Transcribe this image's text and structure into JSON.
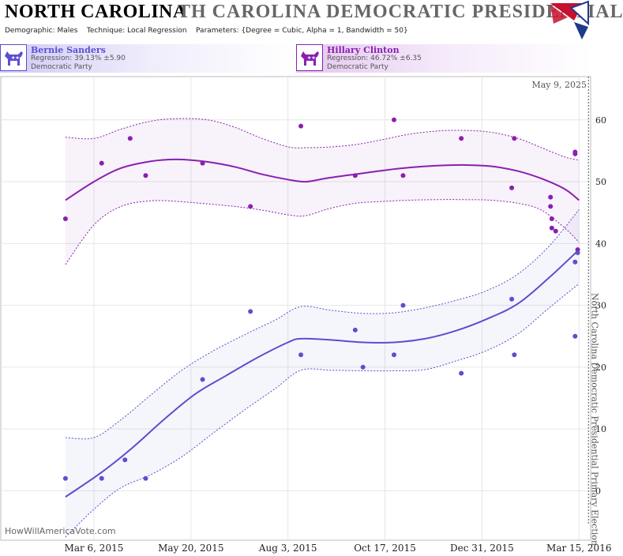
{
  "header": {
    "state": "NORTH CAROLINA",
    "race_title": "TH CAROLINA DEMOCRATIC PRESIDENTIAL I",
    "demographic_label": "Demographic:",
    "demographic_value": "Males",
    "technique_label": "Technique:",
    "technique_value": "Local Regression",
    "parameters_label": "Parameters:",
    "parameters_value": "{Degree = Cubic, Alpha = 1, Bandwidth = 50}"
  },
  "candidates": [
    {
      "name": "Bernie Sanders",
      "regression": "Regression: 39.13% ±5.90",
      "party": "Democratic Party",
      "color": "#5a4fcf"
    },
    {
      "name": "Hillary Clinton",
      "regression": "Regression: 46.72% ±6.35",
      "party": "Democratic Party",
      "color": "#8a1fb0"
    }
  ],
  "chart_data": {
    "type": "scatter",
    "current_date_label": "May 9, 2025",
    "election_label": "North Carolina Democratic Presidential Primary Election",
    "watermark": "HowWillAmericaVote.com",
    "x_tick_labels": [
      "Mar 6, 2015",
      "May 20, 2015",
      "Aug 3, 2015",
      "Oct 17, 2015",
      "Dec 31, 2015",
      "Mar 15, 2016"
    ],
    "x_tick_dates": [
      "2015-03-06",
      "2015-05-20",
      "2015-08-03",
      "2015-10-17",
      "2015-12-31",
      "2016-03-15"
    ],
    "xlim": [
      "2014-12-24",
      "2016-03-24"
    ],
    "ylim": [
      -8,
      67
    ],
    "y_ticks": [
      0,
      10,
      20,
      30,
      40,
      50,
      60
    ],
    "grid": true,
    "series": [
      {
        "name": "Hillary Clinton",
        "color": "#8a1fb0",
        "points": [
          {
            "x": "2015-02-12",
            "y": 44
          },
          {
            "x": "2015-03-12",
            "y": 53
          },
          {
            "x": "2015-04-03",
            "y": 57
          },
          {
            "x": "2015-04-15",
            "y": 51
          },
          {
            "x": "2015-05-29",
            "y": 53
          },
          {
            "x": "2015-07-05",
            "y": 46
          },
          {
            "x": "2015-08-13",
            "y": 59
          },
          {
            "x": "2015-09-24",
            "y": 51
          },
          {
            "x": "2015-10-24",
            "y": 60
          },
          {
            "x": "2015-10-31",
            "y": 51
          },
          {
            "x": "2015-12-15",
            "y": 57
          },
          {
            "x": "2016-01-23",
            "y": 49
          },
          {
            "x": "2016-01-25",
            "y": 57
          },
          {
            "x": "2016-02-22",
            "y": 47.5
          },
          {
            "x": "2016-02-22",
            "y": 46
          },
          {
            "x": "2016-02-23",
            "y": 44
          },
          {
            "x": "2016-02-23",
            "y": 42.5
          },
          {
            "x": "2016-02-26",
            "y": 42
          },
          {
            "x": "2016-03-12",
            "y": 54.5
          },
          {
            "x": "2016-03-12",
            "y": 54.8
          },
          {
            "x": "2016-03-14",
            "y": 39
          }
        ],
        "trend": [
          {
            "x": "2015-02-12",
            "y": 47
          },
          {
            "x": "2015-03-06",
            "y": 50
          },
          {
            "x": "2015-03-27",
            "y": 52.2
          },
          {
            "x": "2015-04-19",
            "y": 53.3
          },
          {
            "x": "2015-05-10",
            "y": 53.6
          },
          {
            "x": "2015-06-02",
            "y": 53.2
          },
          {
            "x": "2015-06-23",
            "y": 52.4
          },
          {
            "x": "2015-07-14",
            "y": 51.2
          },
          {
            "x": "2015-08-04",
            "y": 50.3
          },
          {
            "x": "2015-08-17",
            "y": 50
          },
          {
            "x": "2015-09-03",
            "y": 50.6
          },
          {
            "x": "2015-09-24",
            "y": 51.2
          },
          {
            "x": "2015-10-15",
            "y": 51.8
          },
          {
            "x": "2015-11-05",
            "y": 52.3
          },
          {
            "x": "2015-11-26",
            "y": 52.6
          },
          {
            "x": "2015-12-17",
            "y": 52.7
          },
          {
            "x": "2016-01-07",
            "y": 52.5
          },
          {
            "x": "2016-01-28",
            "y": 51.7
          },
          {
            "x": "2016-02-15",
            "y": 50.5
          },
          {
            "x": "2016-03-04",
            "y": 48.8
          },
          {
            "x": "2016-03-15",
            "y": 47
          }
        ],
        "band_upper": [
          {
            "x": "2015-02-12",
            "y": 57.2
          },
          {
            "x": "2015-03-06",
            "y": 57
          },
          {
            "x": "2015-03-27",
            "y": 58.5
          },
          {
            "x": "2015-04-19",
            "y": 59.8
          },
          {
            "x": "2015-05-10",
            "y": 60.2
          },
          {
            "x": "2015-06-02",
            "y": 60
          },
          {
            "x": "2015-06-23",
            "y": 58.8
          },
          {
            "x": "2015-07-14",
            "y": 57
          },
          {
            "x": "2015-08-04",
            "y": 55.6
          },
          {
            "x": "2015-08-17",
            "y": 55.5
          },
          {
            "x": "2015-09-03",
            "y": 55.6
          },
          {
            "x": "2015-09-24",
            "y": 56
          },
          {
            "x": "2015-10-15",
            "y": 56.8
          },
          {
            "x": "2015-11-05",
            "y": 57.7
          },
          {
            "x": "2015-11-26",
            "y": 58.2
          },
          {
            "x": "2015-12-17",
            "y": 58.3
          },
          {
            "x": "2016-01-07",
            "y": 58
          },
          {
            "x": "2016-01-28",
            "y": 57
          },
          {
            "x": "2016-02-15",
            "y": 55.5
          },
          {
            "x": "2016-03-04",
            "y": 54
          },
          {
            "x": "2016-03-15",
            "y": 53.5
          }
        ],
        "band_lower": [
          {
            "x": "2015-02-12",
            "y": 36.6
          },
          {
            "x": "2015-03-06",
            "y": 43
          },
          {
            "x": "2015-03-27",
            "y": 46
          },
          {
            "x": "2015-04-19",
            "y": 46.9
          },
          {
            "x": "2015-05-10",
            "y": 46.8
          },
          {
            "x": "2015-06-02",
            "y": 46.4
          },
          {
            "x": "2015-06-23",
            "y": 46
          },
          {
            "x": "2015-07-14",
            "y": 45.4
          },
          {
            "x": "2015-08-04",
            "y": 44.6
          },
          {
            "x": "2015-08-17",
            "y": 44.5
          },
          {
            "x": "2015-09-03",
            "y": 45.6
          },
          {
            "x": "2015-09-24",
            "y": 46.5
          },
          {
            "x": "2015-10-15",
            "y": 46.8
          },
          {
            "x": "2015-11-05",
            "y": 47
          },
          {
            "x": "2015-11-26",
            "y": 47.1
          },
          {
            "x": "2015-12-17",
            "y": 47.1
          },
          {
            "x": "2016-01-07",
            "y": 47
          },
          {
            "x": "2016-01-28",
            "y": 46.5
          },
          {
            "x": "2016-02-15",
            "y": 45.4
          },
          {
            "x": "2016-03-04",
            "y": 42.5
          },
          {
            "x": "2016-03-15",
            "y": 40.2
          }
        ]
      },
      {
        "name": "Bernie Sanders",
        "color": "#5a4fcf",
        "points": [
          {
            "x": "2015-02-12",
            "y": 2
          },
          {
            "x": "2015-03-12",
            "y": 2
          },
          {
            "x": "2015-03-30",
            "y": 5
          },
          {
            "x": "2015-04-15",
            "y": 2
          },
          {
            "x": "2015-05-29",
            "y": 18
          },
          {
            "x": "2015-07-05",
            "y": 29
          },
          {
            "x": "2015-08-13",
            "y": 22
          },
          {
            "x": "2015-09-24",
            "y": 26
          },
          {
            "x": "2015-09-30",
            "y": 20
          },
          {
            "x": "2015-10-24",
            "y": 22
          },
          {
            "x": "2015-10-31",
            "y": 30
          },
          {
            "x": "2015-12-15",
            "y": 19
          },
          {
            "x": "2016-01-23",
            "y": 31
          },
          {
            "x": "2016-01-25",
            "y": 22
          },
          {
            "x": "2016-03-12",
            "y": 25
          },
          {
            "x": "2016-03-12",
            "y": 37
          },
          {
            "x": "2016-03-14",
            "y": 38.5
          }
        ],
        "trend": [
          {
            "x": "2015-02-12",
            "y": -1
          },
          {
            "x": "2015-03-12",
            "y": 3
          },
          {
            "x": "2015-04-05",
            "y": 7
          },
          {
            "x": "2015-04-29",
            "y": 11.5
          },
          {
            "x": "2015-05-23",
            "y": 15.6
          },
          {
            "x": "2015-06-16",
            "y": 18.6
          },
          {
            "x": "2015-07-10",
            "y": 21.5
          },
          {
            "x": "2015-08-03",
            "y": 24
          },
          {
            "x": "2015-08-13",
            "y": 24.6
          },
          {
            "x": "2015-09-05",
            "y": 24.4
          },
          {
            "x": "2015-09-30",
            "y": 24
          },
          {
            "x": "2015-10-24",
            "y": 24
          },
          {
            "x": "2015-11-17",
            "y": 24.6
          },
          {
            "x": "2015-12-11",
            "y": 25.9
          },
          {
            "x": "2016-01-04",
            "y": 27.8
          },
          {
            "x": "2016-01-28",
            "y": 30.3
          },
          {
            "x": "2016-02-21",
            "y": 34.5
          },
          {
            "x": "2016-03-15",
            "y": 39
          }
        ],
        "band_upper": [
          {
            "x": "2015-02-12",
            "y": 8.6
          },
          {
            "x": "2015-03-06",
            "y": 8.6
          },
          {
            "x": "2015-03-27",
            "y": 11.5
          },
          {
            "x": "2015-04-19",
            "y": 15.5
          },
          {
            "x": "2015-05-13",
            "y": 19.5
          },
          {
            "x": "2015-06-06",
            "y": 22.6
          },
          {
            "x": "2015-06-30",
            "y": 25.2
          },
          {
            "x": "2015-07-24",
            "y": 27.6
          },
          {
            "x": "2015-08-13",
            "y": 29.8
          },
          {
            "x": "2015-09-05",
            "y": 29.2
          },
          {
            "x": "2015-09-30",
            "y": 28.7
          },
          {
            "x": "2015-10-24",
            "y": 28.8
          },
          {
            "x": "2015-11-17",
            "y": 29.6
          },
          {
            "x": "2015-12-11",
            "y": 30.8
          },
          {
            "x": "2016-01-04",
            "y": 32.4
          },
          {
            "x": "2016-01-28",
            "y": 35.1
          },
          {
            "x": "2016-02-21",
            "y": 39.6
          },
          {
            "x": "2016-03-15",
            "y": 45.5
          }
        ],
        "band_lower": [
          {
            "x": "2015-02-12",
            "y": -7.5
          },
          {
            "x": "2015-03-06",
            "y": -3
          },
          {
            "x": "2015-03-27",
            "y": 0.5
          },
          {
            "x": "2015-04-19",
            "y": 2.6
          },
          {
            "x": "2015-05-13",
            "y": 5.5
          },
          {
            "x": "2015-06-06",
            "y": 9.3
          },
          {
            "x": "2015-06-30",
            "y": 13
          },
          {
            "x": "2015-07-24",
            "y": 16.5
          },
          {
            "x": "2015-08-13",
            "y": 19.5
          },
          {
            "x": "2015-09-05",
            "y": 19.5
          },
          {
            "x": "2015-09-30",
            "y": 19.4
          },
          {
            "x": "2015-10-24",
            "y": 19.4
          },
          {
            "x": "2015-11-17",
            "y": 19.6
          },
          {
            "x": "2015-12-11",
            "y": 21
          },
          {
            "x": "2016-01-04",
            "y": 22.7
          },
          {
            "x": "2016-01-28",
            "y": 25.4
          },
          {
            "x": "2016-02-21",
            "y": 29.6
          },
          {
            "x": "2016-03-15",
            "y": 33.5
          }
        ]
      }
    ]
  }
}
